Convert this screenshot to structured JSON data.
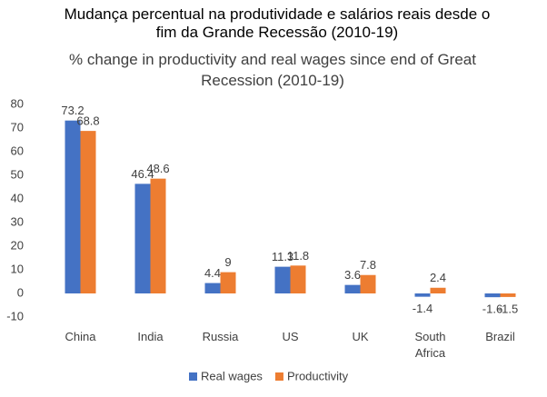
{
  "header": "Mudança percentual na produtividade e salários reais desde o fim da Grande Recessão (2010-19)",
  "chart_data": {
    "type": "bar",
    "title": "% change in productivity and real wages since end of Great Recession (2010-19)",
    "categories": [
      "China",
      "India",
      "Russia",
      "US",
      "UK",
      "South Africa",
      "Brazil"
    ],
    "series": [
      {
        "name": "Real wages",
        "color": "#4472c4",
        "values": [
          73.2,
          46.4,
          4.4,
          11.3,
          3.6,
          -1.4,
          -1.6
        ]
      },
      {
        "name": "Productivity",
        "color": "#ed7d31",
        "values": [
          68.8,
          48.6,
          9,
          11.8,
          7.8,
          2.4,
          -1.5
        ]
      }
    ],
    "ylim": [
      -10,
      80
    ],
    "yticks": [
      -10,
      0,
      10,
      20,
      30,
      40,
      50,
      60,
      70,
      80
    ],
    "grid": false,
    "legend": "bottom"
  }
}
